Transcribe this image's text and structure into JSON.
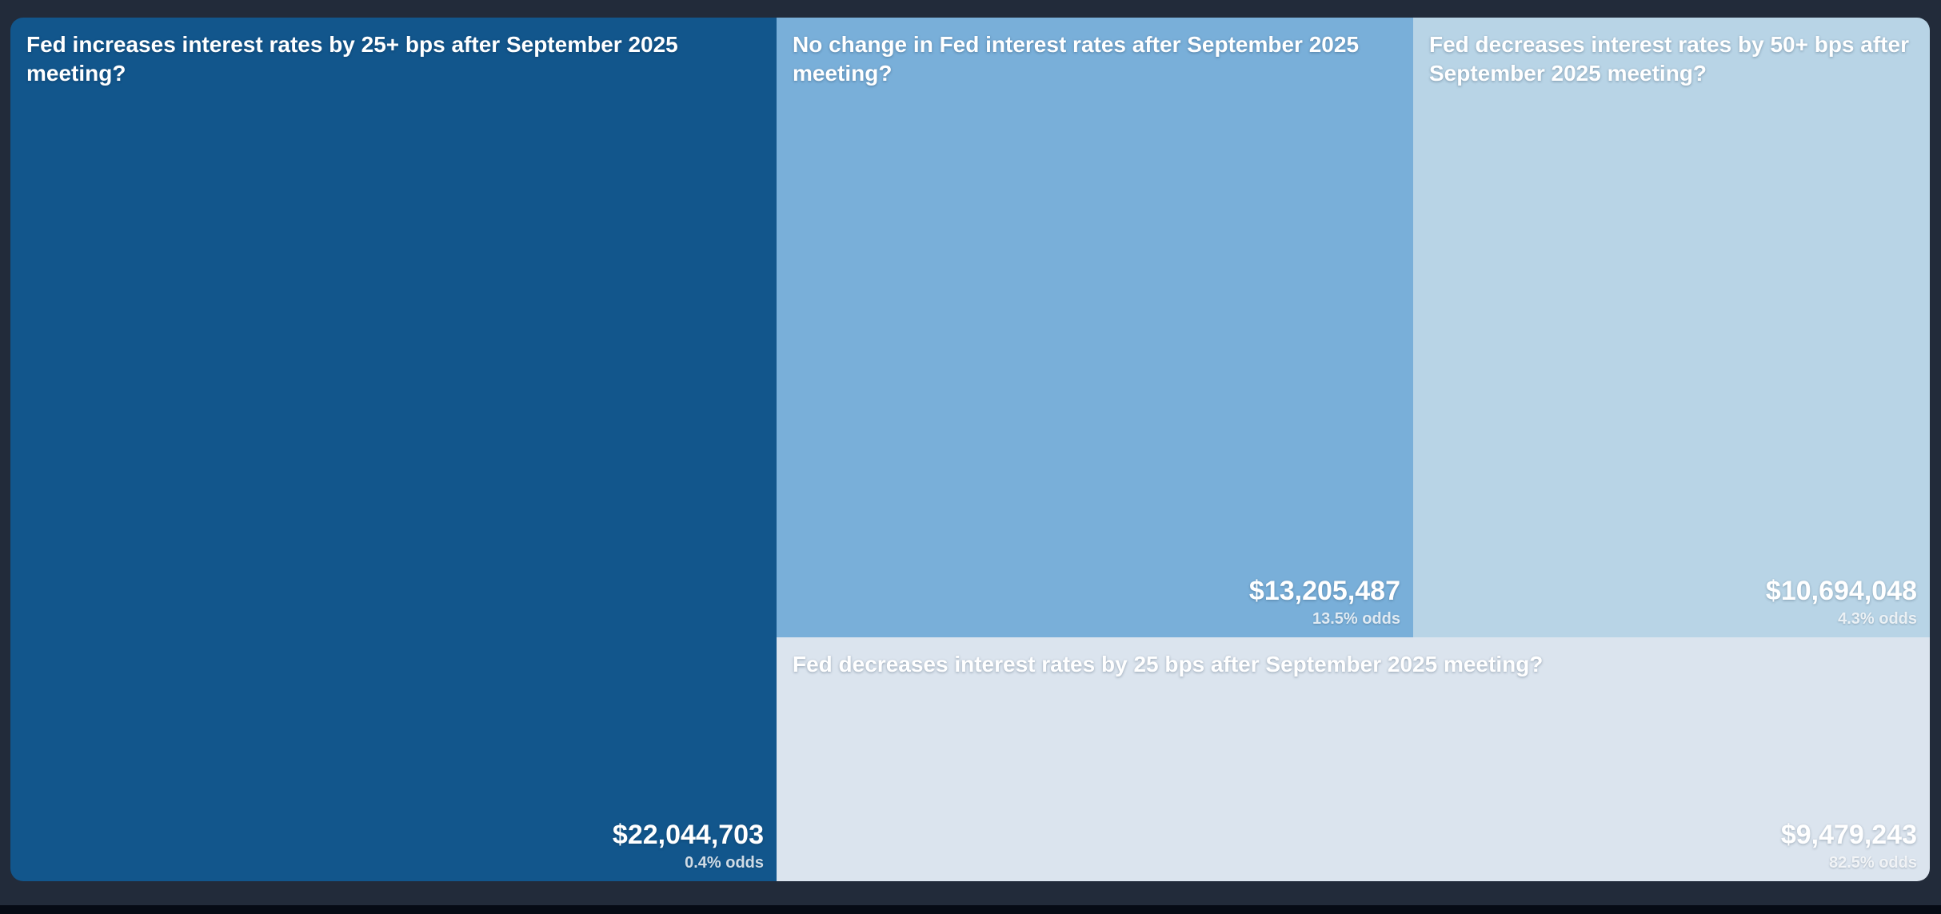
{
  "page": {
    "background_color": "#222B3A",
    "bottom_bar_color": "#060B15",
    "text_color": "#FFFFFF"
  },
  "chart_data": {
    "type": "treemap",
    "description": "Treemap of Fed September 2025 meeting interest-rate prediction markets sized by dollar volume",
    "legend_position": "none",
    "tiles": [
      {
        "title": "Fed increases interest rates by 25+ bps after September 2025 meeting?",
        "volume_label": "$22,044,703",
        "volume_usd": 22044703,
        "odds_label": "0.4% odds",
        "odds_pct": 0.4,
        "color": "#12568C"
      },
      {
        "title": "No change in Fed interest rates after September 2025 meeting?",
        "volume_label": "$13,205,487",
        "volume_usd": 13205487,
        "odds_label": "13.5% odds",
        "odds_pct": 13.5,
        "color": "#79AFD9"
      },
      {
        "title": "Fed decreases interest rates by 50+ bps after September 2025 meeting?",
        "volume_label": "$10,694,048",
        "volume_usd": 10694048,
        "odds_label": "4.3% odds",
        "odds_pct": 4.3,
        "color": "#B8D4E6"
      },
      {
        "title": "Fed decreases interest rates by 25 bps after September 2025 meeting?",
        "volume_label": "$9,479,243",
        "volume_usd": 9479243,
        "odds_label": "82.5% odds",
        "odds_pct": 82.5,
        "color": "#DBE4EE"
      }
    ]
  }
}
